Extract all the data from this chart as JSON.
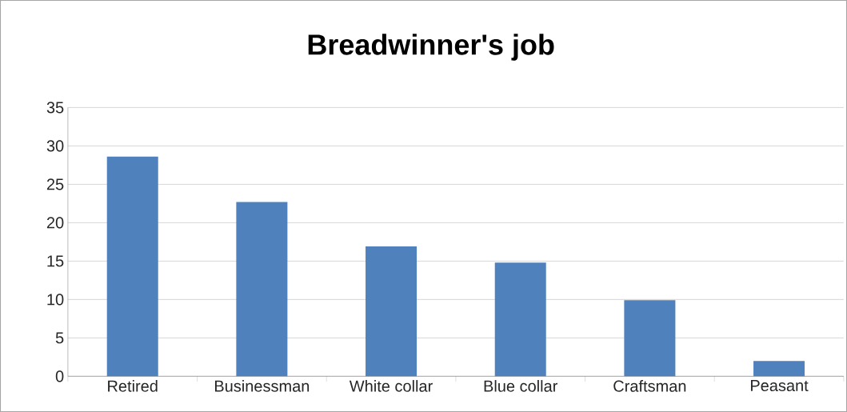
{
  "chart_data": {
    "type": "bar",
    "title": "Breadwinner's job",
    "categories": [
      "Retired",
      "Businessman",
      "White collar",
      "Blue collar",
      "Craftsman",
      "Peasant"
    ],
    "values": [
      28.6,
      22.7,
      16.9,
      14.8,
      9.9,
      2.0
    ],
    "color": "#4f81bd",
    "ylim": [
      0,
      35
    ],
    "yticks": [
      0,
      5,
      10,
      15,
      20,
      25,
      30,
      35
    ],
    "grid": "y"
  }
}
